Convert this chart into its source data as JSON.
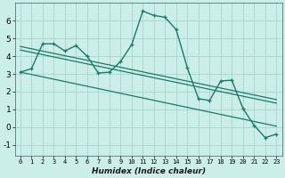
{
  "title": "",
  "xlabel": "Humidex (Indice chaleur)",
  "background_color": "#cceee8",
  "grid_color": "#aad8d0",
  "line_color": "#1a7a6a",
  "xlim": [
    -0.5,
    23.5
  ],
  "ylim": [
    -1.6,
    7.0
  ],
  "xticks": [
    0,
    1,
    2,
    3,
    4,
    5,
    6,
    7,
    8,
    9,
    10,
    11,
    12,
    13,
    14,
    15,
    16,
    17,
    18,
    19,
    20,
    21,
    22,
    23
  ],
  "yticks": [
    -1,
    0,
    1,
    2,
    3,
    4,
    5,
    6
  ],
  "main_series": {
    "x": [
      0,
      1,
      2,
      3,
      4,
      5,
      6,
      7,
      8,
      9,
      10,
      11,
      12,
      13,
      14,
      15,
      16,
      17,
      18,
      19,
      20,
      21,
      22,
      23
    ],
    "y": [
      3.1,
      3.3,
      4.7,
      4.7,
      4.3,
      4.6,
      4.0,
      3.05,
      3.1,
      3.7,
      4.65,
      6.55,
      6.3,
      6.2,
      5.5,
      3.35,
      1.6,
      1.5,
      2.6,
      2.65,
      1.05,
      0.1,
      -0.6,
      -0.4
    ]
  },
  "trend_lines": [
    {
      "x": [
        0,
        23
      ],
      "y": [
        4.55,
        1.55
      ]
    },
    {
      "x": [
        0,
        23
      ],
      "y": [
        4.35,
        1.35
      ]
    },
    {
      "x": [
        0,
        23
      ],
      "y": [
        3.1,
        0.05
      ]
    }
  ]
}
